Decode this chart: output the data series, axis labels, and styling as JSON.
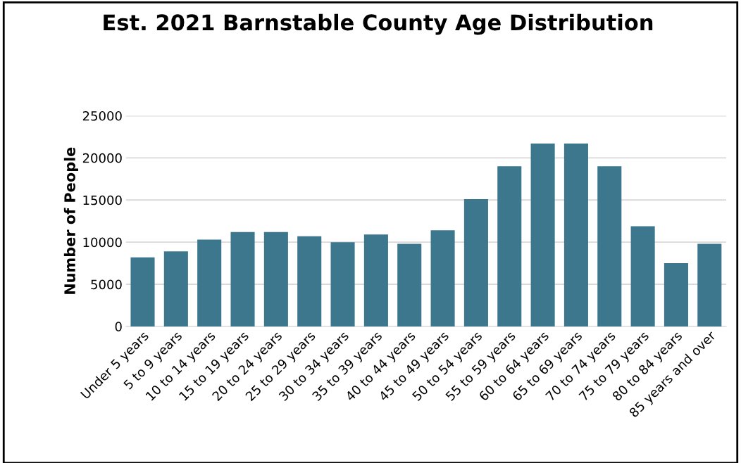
{
  "chart_data": {
    "type": "bar",
    "title": "Est. 2021 Barnstable County Age Distribution",
    "ylabel": "Number of People",
    "categories": [
      "Under 5 years",
      "5 to 9 years",
      "10 to 14 years",
      "15 to 19 years",
      "20 to 24 years",
      "25 to 29 years",
      "30 to 34 years",
      "35 to 39 years",
      "40 to 44 years",
      "45 to 49 years",
      "50 to 54 years",
      "55 to 59 years",
      "60 to 64 years",
      "65 to 69 years",
      "70 to 74 years",
      "75 to 79 years",
      "80 to 84 years",
      "85 years and over"
    ],
    "values": [
      8200,
      8900,
      10300,
      11200,
      11200,
      10700,
      10000,
      10900,
      9800,
      11400,
      15100,
      19000,
      21700,
      21700,
      19000,
      11900,
      7500,
      9800
    ],
    "color": "#3d778e",
    "ylim": [
      0,
      25000
    ],
    "yticks": [
      0,
      5000,
      10000,
      15000,
      20000,
      25000
    ],
    "grid": "y",
    "legend": false
  }
}
